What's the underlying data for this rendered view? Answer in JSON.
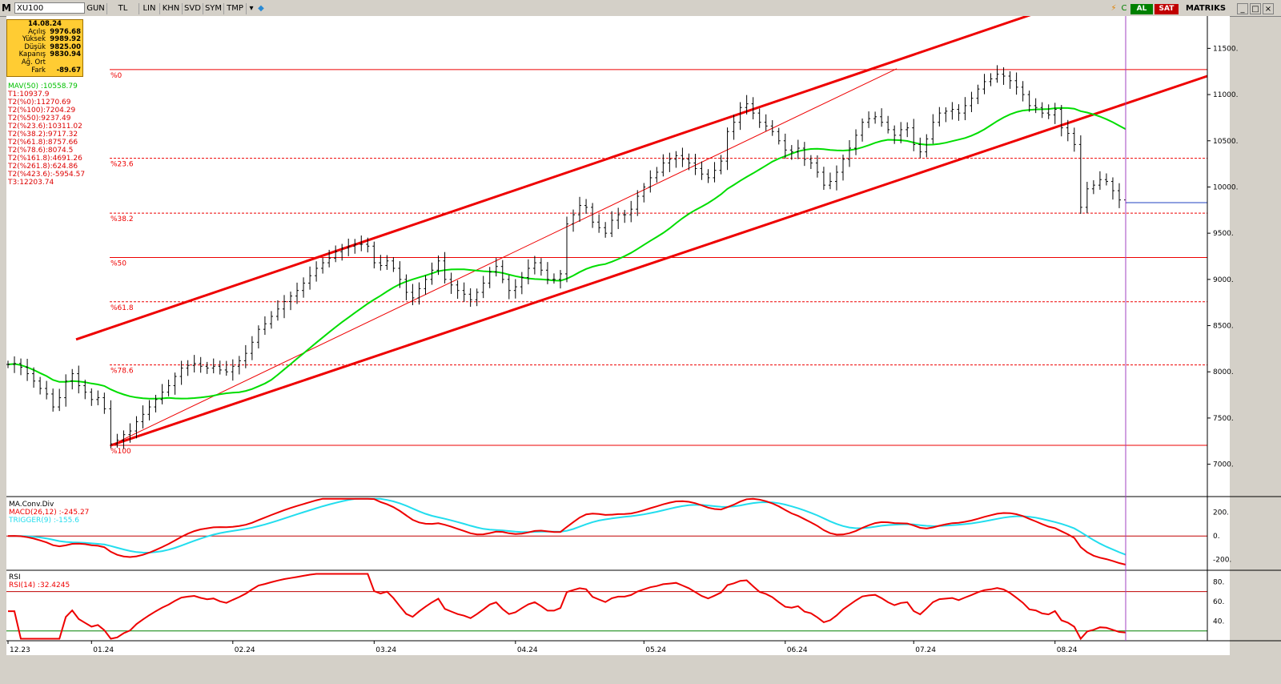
{
  "toolbar": {
    "symbol": "XU100",
    "buttons": [
      "GUN",
      "TL",
      "LIN",
      "KHN",
      "SVD",
      "SYM",
      "TMP"
    ],
    "al": "AL",
    "sat": "SAT",
    "brand": "MATRIKS"
  },
  "infobox": {
    "date": "14.08.24",
    "rows": [
      {
        "k": "Açılış",
        "v": "9976.68"
      },
      {
        "k": "Yüksek",
        "v": "9989.92"
      },
      {
        "k": "Düşük",
        "v": "9825.00"
      },
      {
        "k": "Kapanış",
        "v": "9830.94"
      },
      {
        "k": "Ağ. Ort",
        "v": ""
      },
      {
        "k": "Fark",
        "v": "-89.67"
      }
    ]
  },
  "overlay": {
    "mav": "MAV(50)      :10558.79",
    "lines": [
      "T1:10937.9",
      "T2(%0):11270.69",
      "T2(%100):7204.29",
      "T2(%50):9237.49",
      "T2(%23.6):10311.02",
      "T2(%38.2):9717.32",
      "T2(%61.8):8757.66",
      "T2(%78.6):8074.5",
      "T2(%161.8):4691.26",
      "T2(%261.8):624.86",
      "T2(%423.6):-5954.57",
      "T3:12203.74"
    ]
  },
  "colors": {
    "price": "#000000",
    "mav": "#00dd00",
    "channel": "#ee0000",
    "fib": "#ee0000",
    "macd": "#ee0000",
    "trigger": "#22ddee",
    "rsi": "#ee0000",
    "cursor": "#a040c0"
  },
  "chart_data": [
    {
      "type": "ohlc-line",
      "xlabels": [
        "12.23",
        "01.24",
        "02.24",
        "03.24",
        "04.24",
        "05.24",
        "06.24",
        "07.24",
        "08.24"
      ],
      "yticks": [
        7000,
        7500,
        8000,
        8500,
        9000,
        9500,
        10000,
        10500,
        11000,
        11500
      ],
      "ylim": [
        6650,
        11850
      ],
      "fib_levels": [
        {
          "label": "%0",
          "value": 11270.69,
          "style": "solid"
        },
        {
          "label": "%23.6",
          "value": 10311.02,
          "style": "dashed"
        },
        {
          "label": "%38.2",
          "value": 9717.32,
          "style": "dashed"
        },
        {
          "label": "%50",
          "value": 9237.49,
          "style": "solid"
        },
        {
          "label": "%61.8",
          "value": 8757.66,
          "style": "dashed"
        },
        {
          "label": "%78.6",
          "value": 8074.5,
          "style": "dashed"
        },
        {
          "label": "%100",
          "value": 7204.29,
          "style": "solid"
        }
      ],
      "close_line": 9830.94,
      "closes": [
        8080,
        8090,
        8050,
        7980,
        7900,
        7820,
        7760,
        7620,
        7720,
        7900,
        7980,
        7850,
        7780,
        7700,
        7720,
        7600,
        7220,
        7260,
        7320,
        7360,
        7460,
        7540,
        7620,
        7700,
        7780,
        7850,
        7950,
        8040,
        8070,
        8090,
        8060,
        8040,
        8060,
        8020,
        8000,
        8060,
        8120,
        8200,
        8320,
        8460,
        8520,
        8600,
        8680,
        8760,
        8820,
        8880,
        8960,
        9040,
        9120,
        9180,
        9230,
        9300,
        9340,
        9360,
        9380,
        9380,
        9360,
        9180,
        9150,
        9200,
        9120,
        9000,
        8860,
        8800,
        8900,
        9000,
        9100,
        9200,
        9000,
        8940,
        8880,
        8840,
        8780,
        8860,
        8960,
        9080,
        9140,
        9000,
        8880,
        8920,
        9020,
        9120,
        9180,
        9100,
        9000,
        9000,
        9060,
        9600,
        9700,
        9800,
        9780,
        9620,
        9560,
        9500,
        9640,
        9700,
        9700,
        9760,
        9900,
        10000,
        10100,
        10160,
        10260,
        10300,
        10340,
        10300,
        10260,
        10200,
        10140,
        10100,
        10180,
        10280,
        10600,
        10700,
        10860,
        10900,
        10800,
        10700,
        10660,
        10600,
        10500,
        10400,
        10380,
        10420,
        10300,
        10260,
        10160,
        10020,
        10060,
        10160,
        10300,
        10420,
        10560,
        10700,
        10740,
        10760,
        10700,
        10620,
        10560,
        10620,
        10640,
        10460,
        10380,
        10520,
        10700,
        10800,
        10820,
        10840,
        10800,
        10880,
        10960,
        11060,
        11140,
        11170,
        11220,
        11200,
        11150,
        11080,
        11000,
        10880,
        10860,
        10800,
        10780,
        10840,
        10640,
        10580,
        10460,
        9780,
        9980,
        10020,
        10080,
        10060,
        9960,
        9860,
        9830
      ]
    },
    {
      "type": "line",
      "title": "MA.Conv.Div",
      "series": [
        {
          "name": "MACD(26,12)",
          "last": "-245.27"
        },
        {
          "name": "TRIGGER(9)",
          "last": "-155.6"
        }
      ],
      "yticks": [
        200,
        0,
        -200
      ],
      "ylim": [
        -290,
        320
      ]
    },
    {
      "type": "line",
      "title": "RSI",
      "series": [
        {
          "name": "RSI(14)",
          "last": "32.4245"
        }
      ],
      "yticks": [
        80,
        60,
        40
      ],
      "levels": [
        70,
        30
      ],
      "ylim": [
        20,
        90
      ]
    }
  ]
}
